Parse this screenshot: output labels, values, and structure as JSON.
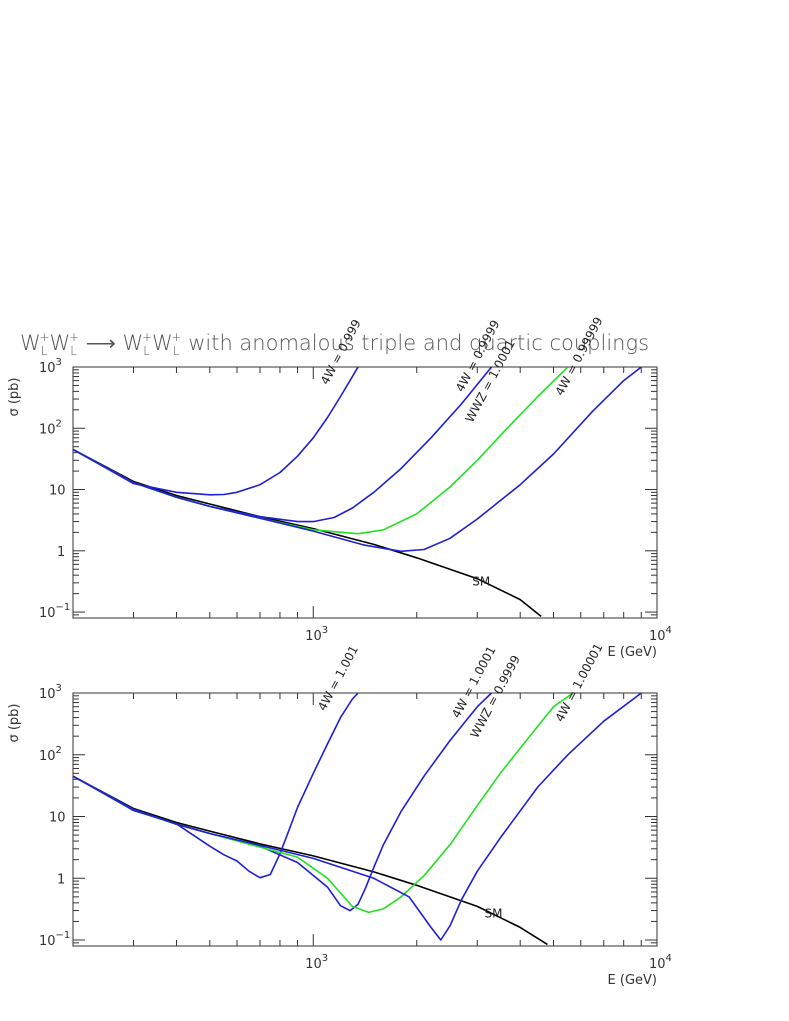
{
  "title": {
    "parts": [
      "W",
      "L",
      "+",
      "W",
      "L",
      "+",
      " ⟶ ",
      "W",
      "L",
      "+",
      "W",
      "L",
      "+",
      " with anomalous triple and quartic couplings"
    ]
  },
  "colors": {
    "blue": "#1f1fd6",
    "green": "#22e022",
    "black": "#000000",
    "frame": "#333333"
  },
  "chart_data": [
    {
      "type": "line",
      "xscale": "log",
      "yscale": "log",
      "xlim": [
        200,
        10000
      ],
      "ylim": [
        0.08,
        1000
      ],
      "xlabel": "E (GeV)",
      "ylabel": "σ (pb)",
      "xticks": [
        {
          "value": 1000,
          "base": "10",
          "exp": "3"
        },
        {
          "value": 10000,
          "base": "10",
          "exp": "4"
        }
      ],
      "yticks": [
        {
          "value": 1000,
          "base": "10",
          "exp": "3"
        },
        {
          "value": 100,
          "base": "10",
          "exp": "2"
        },
        {
          "value": 10,
          "base": "10",
          "exp": ""
        },
        {
          "value": 1,
          "base": "1",
          "exp": ""
        },
        {
          "value": 0.1,
          "base": "10",
          "exp": "−1"
        }
      ],
      "series": [
        {
          "name": "SM",
          "color": "black",
          "x": [
            200,
            300,
            400,
            500,
            700,
            1000,
            1500,
            2000,
            3000,
            4000,
            4600
          ],
          "y": [
            45,
            13.5,
            8.0,
            5.8,
            3.6,
            2.3,
            1.27,
            0.77,
            0.35,
            0.16,
            0.085
          ]
        },
        {
          "name": "4W = 0.999",
          "color": "blue",
          "x": [
            200,
            300,
            400,
            500,
            550,
            600,
            700,
            800,
            900,
            1000,
            1100,
            1200,
            1350
          ],
          "y": [
            45,
            12.5,
            9.0,
            8.2,
            8.3,
            9.0,
            12.0,
            19.0,
            35.0,
            70.0,
            150.0,
            330.0,
            1000.0
          ]
        },
        {
          "name": "4W = 0.9999",
          "color": "blue",
          "x": [
            200,
            300,
            400,
            500,
            700,
            900,
            1000,
            1150,
            1300,
            1500,
            1800,
            2200,
            2700,
            3300
          ],
          "y": [
            45,
            13.0,
            7.5,
            5.3,
            3.6,
            3.0,
            3.0,
            3.5,
            5.0,
            9.0,
            22.0,
            70.0,
            250.0,
            1000.0
          ]
        },
        {
          "name": "WWZ = 1.0001",
          "color": "green",
          "x": [
            200,
            300,
            400,
            500,
            700,
            1000,
            1350,
            1600,
            2000,
            2500,
            3000,
            3600,
            4500,
            5500
          ],
          "y": [
            45,
            13.0,
            7.5,
            5.3,
            3.4,
            2.2,
            1.9,
            2.2,
            4.0,
            11.0,
            30.0,
            90.0,
            330.0,
            1000.0
          ]
        },
        {
          "name": "4W = 0.99999",
          "color": "blue",
          "x": [
            200,
            300,
            400,
            500,
            700,
            1000,
            1400,
            1800,
            2100,
            2500,
            3000,
            4000,
            5000,
            6500,
            8000,
            9000
          ],
          "y": [
            45,
            13.0,
            7.5,
            5.3,
            3.4,
            2.1,
            1.25,
            0.98,
            1.05,
            1.6,
            3.3,
            12.0,
            38.0,
            190.0,
            600.0,
            1000.0
          ]
        }
      ],
      "labels": [
        {
          "text": "4W = 0.999",
          "x": 1100,
          "y": 500
        },
        {
          "text": "4W = 0.9999",
          "x": 2720,
          "y": 380
        },
        {
          "text": "WWZ = 1.0001",
          "x": 2900,
          "y": 120
        },
        {
          "text": "4W = 0.99999",
          "x": 5300,
          "y": 330
        },
        {
          "text": "SM",
          "x": 2900,
          "y": 0.27
        }
      ]
    },
    {
      "type": "line",
      "xscale": "log",
      "yscale": "log",
      "xlim": [
        200,
        10000
      ],
      "ylim": [
        0.08,
        1000
      ],
      "xlabel": "E (GeV)",
      "ylabel": "σ (pb)",
      "xticks": [
        {
          "value": 1000,
          "base": "10",
          "exp": "3"
        },
        {
          "value": 10000,
          "base": "10",
          "exp": "4"
        }
      ],
      "yticks": [
        {
          "value": 1000,
          "base": "10",
          "exp": "3"
        },
        {
          "value": 100,
          "base": "10",
          "exp": "2"
        },
        {
          "value": 10,
          "base": "10",
          "exp": ""
        },
        {
          "value": 1,
          "base": "1",
          "exp": ""
        },
        {
          "value": 0.1,
          "base": "10",
          "exp": "−1"
        }
      ],
      "series": [
        {
          "name": "SM",
          "color": "black",
          "x": [
            200,
            300,
            400,
            500,
            700,
            1000,
            1500,
            2000,
            3000,
            4000,
            4800
          ],
          "y": [
            45,
            13.5,
            8.0,
            5.8,
            3.6,
            2.3,
            1.27,
            0.77,
            0.35,
            0.16,
            0.085
          ]
        },
        {
          "name": "4W = 1.001",
          "color": "blue",
          "x": [
            200,
            300,
            400,
            500,
            550,
            600,
            650,
            700,
            750,
            800,
            850,
            900,
            1000,
            1100,
            1200,
            1300,
            1350
          ],
          "y": [
            45,
            12.5,
            7.6,
            3.3,
            2.4,
            1.9,
            1.3,
            1.02,
            1.15,
            2.5,
            6.0,
            14.0,
            50.0,
            150.0,
            400.0,
            800.0,
            1000.0
          ]
        },
        {
          "name": "4W = 1.0001",
          "color": "blue",
          "x": [
            200,
            300,
            400,
            500,
            700,
            900,
            1100,
            1200,
            1280,
            1350,
            1420,
            1500,
            1600,
            1800,
            2100,
            2500,
            3000,
            3300
          ],
          "y": [
            45,
            13.0,
            7.5,
            5.3,
            3.3,
            1.8,
            0.72,
            0.36,
            0.3,
            0.38,
            0.7,
            1.5,
            3.5,
            12.0,
            45.0,
            170.0,
            600.0,
            1000.0
          ]
        },
        {
          "name": "WWZ = 0.9999",
          "color": "green",
          "x": [
            200,
            300,
            400,
            500,
            700,
            900,
            1100,
            1300,
            1450,
            1600,
            1800,
            2100,
            2500,
            3000,
            3500,
            4200,
            5000,
            5700
          ],
          "y": [
            45,
            13.0,
            7.5,
            5.3,
            3.2,
            2.2,
            1.0,
            0.35,
            0.28,
            0.32,
            0.5,
            1.1,
            3.5,
            15.0,
            50.0,
            180.0,
            600.0,
            1000.0
          ]
        },
        {
          "name": "4W = 1.00001",
          "color": "blue",
          "x": [
            200,
            300,
            400,
            500,
            700,
            1000,
            1500,
            1900,
            2200,
            2350,
            2500,
            2700,
            3000,
            3500,
            4500,
            5500,
            7000,
            9000
          ],
          "y": [
            45,
            13.0,
            7.5,
            5.3,
            3.4,
            2.1,
            1.0,
            0.5,
            0.16,
            0.1,
            0.17,
            0.45,
            1.3,
            4.5,
            30.0,
            100.0,
            350.0,
            1000.0
          ]
        }
      ],
      "labels": [
        {
          "text": "4W = 1.001",
          "x": 1080,
          "y": 500
        },
        {
          "text": "4W = 1.0001",
          "x": 2650,
          "y": 380
        },
        {
          "text": "WWZ = 0.9999",
          "x": 3000,
          "y": 180
        },
        {
          "text": "4W = 1.00001",
          "x": 5300,
          "y": 330
        },
        {
          "text": "SM",
          "x": 3150,
          "y": 0.23
        }
      ]
    }
  ]
}
